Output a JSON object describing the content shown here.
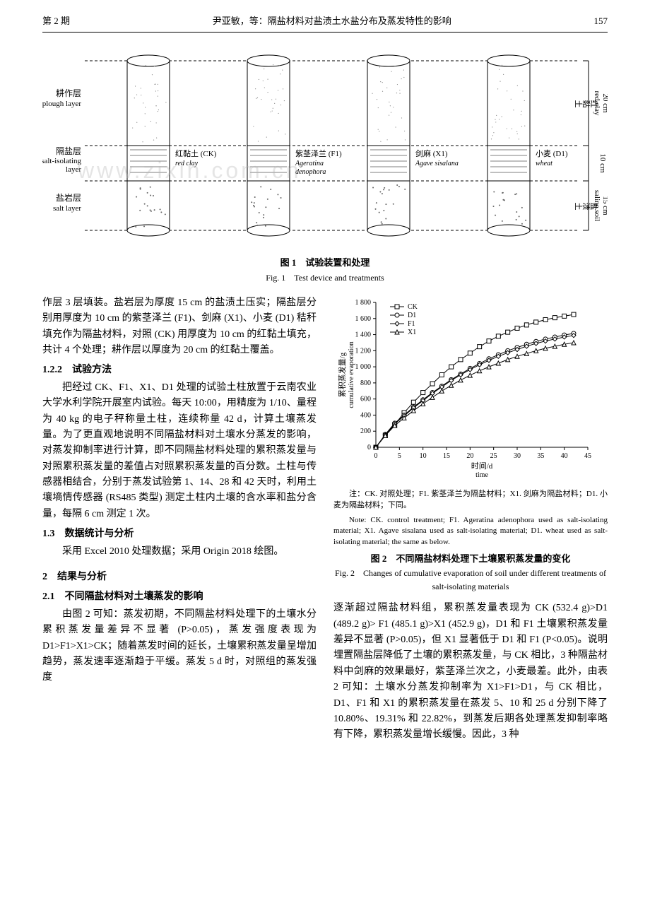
{
  "header": {
    "issue": "第 2 期",
    "title_center": "尹亚敏，等：隔盐材料对盐渍土水盐分布及蒸发特性的影响",
    "page": "157"
  },
  "fig1": {
    "labels_left": {
      "plough_cn": "耕作层",
      "plough_en": "plough layer",
      "iso_cn": "隔盐层",
      "iso_en1": "salt-isolating",
      "iso_en2": "layer",
      "salt_cn": "盐岩层",
      "salt_en": "salt layer"
    },
    "right_scale": {
      "top_cn": "红黏土",
      "top_en": "red clay",
      "top_dim": "20 cm",
      "mid_dim": "10 cm",
      "bot_cn": "盐渍土",
      "bot_en": "saline soil",
      "bot_dim": "15 cm"
    },
    "cylinders": [
      {
        "label_cn": "红黏土 (CK)",
        "label_en": "red clay"
      },
      {
        "label_cn": "紫茎泽兰 (F1)",
        "label_en1": "Ageratina",
        "label_en2": "denophora"
      },
      {
        "label_cn": "剑麻 (X1)",
        "label_en1": "Agave sisalana",
        "label_en2": ""
      },
      {
        "label_cn": "小麦 (D1)",
        "label_en1": "wheat",
        "label_en2": ""
      }
    ],
    "caption_cn": "图 1　试验装置和处理",
    "caption_en": "Fig. 1　Test device and treatments"
  },
  "left_col": {
    "p1": "作层 3 层填装。盐岩层为厚度 15 cm 的盐渍土压实；隔盐层分别用厚度为 10 cm 的紫茎泽兰 (F1)、剑麻 (X1)、小麦 (D1) 秸秆填充作为隔盐材料，对照 (CK) 用厚度为 10 cm 的红黏土填充，共计 4 个处理；耕作层以厚度为 20 cm 的红黏土覆盖。",
    "h122": "1.2.2　试验方法",
    "p2": "把经过 CK、F1、X1、D1 处理的试验土柱放置于云南农业大学水利学院开展室内试验。每天 10:00，用精度为 1/10、量程为 40 kg 的电子秤称量土柱，连续称量 42 d，计算土壤蒸发量。为了更直观地说明不同隔盐材料对土壤水分蒸发的影响，对蒸发抑制率进行计算，即不同隔盐材料处理的累积蒸发量与对照累积蒸发量的差值占对照累积蒸发量的百分数。土柱与传感器相结合，分别于蒸发试验第 1、14、28 和 42 天时，利用土壤墒情传感器 (RS485 类型) 测定土柱内土壤的含水率和盐分含量，每隔 6 cm 测定 1 次。",
    "h13": "1.3　数据统计与分析",
    "p3": "采用 Excel 2010 处理数据；采用 Origin 2018 绘图。",
    "h2": "2　结果与分析",
    "h21": "2.1　不同隔盐材料对土壤蒸发的影响",
    "p4": "由图 2 可知：蒸发初期，不同隔盐材料处理下的土壤水分累积蒸发量差异不显著 (P>0.05)，蒸发强度表现为 D1>F1>X1>CK；随着蒸发时间的延长，土壤累积蒸发量呈增加趋势，蒸发速率逐渐趋于平缓。蒸发 5 d 时，对照组的蒸发强度"
  },
  "fig2": {
    "x_label_cn": "时间/d",
    "x_label_en": "time",
    "y_label_cn": "累积蒸发量/g",
    "y_label_en": "cumulative evaporation",
    "xlim": [
      0,
      45
    ],
    "ylim": [
      0,
      1800
    ],
    "x_ticks": [
      0,
      5,
      10,
      15,
      20,
      25,
      30,
      35,
      40,
      45
    ],
    "y_ticks": [
      0,
      200,
      400,
      600,
      800,
      1000,
      1200,
      1400,
      1600,
      1800
    ],
    "series": [
      {
        "name": "CK",
        "marker": "square-open",
        "color": "#000000",
        "x": [
          0,
          2,
          4,
          6,
          8,
          10,
          12,
          14,
          16,
          18,
          20,
          22,
          24,
          26,
          28,
          30,
          32,
          34,
          36,
          38,
          40,
          42
        ],
        "y": [
          0,
          150,
          280,
          430,
          560,
          680,
          790,
          900,
          1000,
          1090,
          1170,
          1250,
          1320,
          1380,
          1430,
          1480,
          1520,
          1555,
          1585,
          1610,
          1630,
          1650
        ]
      },
      {
        "name": "D1",
        "marker": "circle-open",
        "color": "#000000",
        "x": [
          0,
          2,
          4,
          6,
          8,
          10,
          12,
          14,
          16,
          18,
          20,
          22,
          24,
          26,
          28,
          30,
          32,
          34,
          36,
          38,
          40,
          42
        ],
        "y": [
          0,
          160,
          300,
          400,
          500,
          590,
          680,
          760,
          840,
          910,
          980,
          1040,
          1100,
          1150,
          1200,
          1240,
          1280,
          1315,
          1345,
          1370,
          1395,
          1415
        ]
      },
      {
        "name": "F1",
        "marker": "diamond-open",
        "color": "#000000",
        "x": [
          0,
          2,
          4,
          6,
          8,
          10,
          12,
          14,
          16,
          18,
          20,
          22,
          24,
          26,
          28,
          30,
          32,
          34,
          36,
          38,
          40,
          42
        ],
        "y": [
          0,
          155,
          290,
          390,
          490,
          580,
          670,
          750,
          830,
          900,
          965,
          1025,
          1080,
          1130,
          1175,
          1215,
          1255,
          1290,
          1320,
          1345,
          1370,
          1390
        ]
      },
      {
        "name": "X1",
        "marker": "triangle-open",
        "color": "#000000",
        "x": [
          0,
          2,
          4,
          6,
          8,
          10,
          12,
          14,
          16,
          18,
          20,
          22,
          24,
          26,
          28,
          30,
          32,
          34,
          36,
          38,
          40,
          42
        ],
        "y": [
          0,
          145,
          270,
          365,
          455,
          540,
          620,
          700,
          770,
          835,
          895,
          950,
          1000,
          1045,
          1090,
          1130,
          1165,
          1200,
          1230,
          1255,
          1280,
          1300
        ]
      }
    ],
    "note_cn": "注：CK. 对照处理；F1. 紫茎泽兰为隔盐材料；X1. 剑麻为隔盐材料；D1. 小麦为隔盐材料；下同。",
    "note_en": "Note: CK. control treatment; F1. Ageratina adenophora used as salt-isolating material; X1. Agave sisalana used as salt-isolating material; D1. wheat used as salt-isolating material; the same as below.",
    "caption_cn": "图 2　不同隔盐材料处理下土壤累积蒸发量的变化",
    "caption_en": "Fig. 2　Changes of cumulative evaporation of soil under different treatments of salt-isolating materials"
  },
  "right_col": {
    "p1": "逐渐超过隔盐材料组，累积蒸发量表现为 CK (532.4 g)>D1 (489.2 g)> F1 (485.1 g)>X1 (452.9 g)，D1 和 F1 土壤累积蒸发量差异不显著 (P>0.05)，但 X1 显著低于 D1 和 F1 (P<0.05)。说明埋置隔盐层降低了土壤的累积蒸发量，与 CK 相比，3 种隔盐材料中剑麻的效果最好，紫茎泽兰次之，小麦最差。此外，由表 2 可知：土壤水分蒸发抑制率为 X1>F1>D1，与 CK 相比，D1、F1 和 X1 的累积蒸发量在蒸发 5、10 和 25 d 分别下降了 10.80%、19.31% 和 22.82%，到蒸发后期各处理蒸发抑制率略有下降，累积蒸发量增长缓慢。因此，3 种"
  },
  "watermark": "www.zixin.com.cn",
  "colors": {
    "line": "#000000",
    "bg": "#ffffff",
    "cylinder_top": "#f3f0ed",
    "cylinder_mid": "#ffffff",
    "cylinder_bot": "#f5f2ef"
  }
}
